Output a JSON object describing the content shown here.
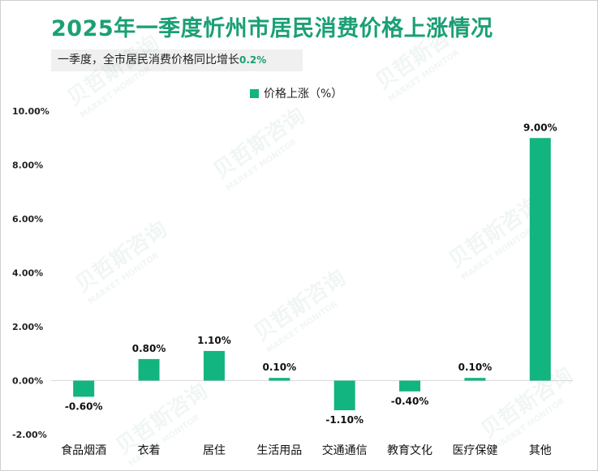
{
  "title": "2025年一季度忻州市居民消费价格上涨情况",
  "subtitle": {
    "text": "一季度，全市居民消费价格同比增长",
    "value": "0.2%"
  },
  "colors": {
    "bar": "#12b47f",
    "title": "#1aa075"
  },
  "watermark": {
    "cn": "贝哲斯咨询",
    "en": "MARKET MONITOR"
  },
  "chart_data": {
    "type": "bar",
    "categories": [
      "食品烟酒",
      "衣着",
      "居住",
      "生活用品",
      "交通通信",
      "教育文化",
      "医疗保健",
      "其他"
    ],
    "series": [
      {
        "name": "价格上涨（%）",
        "values": [
          -0.6,
          0.8,
          1.1,
          0.1,
          -1.1,
          -0.4,
          0.1,
          9.0
        ],
        "labels": [
          "-0.60%",
          "0.80%",
          "1.10%",
          "0.10%",
          "-1.10%",
          "-0.40%",
          "0.10%",
          "9.00%"
        ]
      }
    ],
    "y_ticks": [
      "-2.00%",
      "0.00%",
      "2.00%",
      "4.00%",
      "6.00%",
      "8.00%",
      "10.00%"
    ],
    "ylim": [
      -2,
      10
    ],
    "legend_position": "top-center",
    "grid": false
  }
}
